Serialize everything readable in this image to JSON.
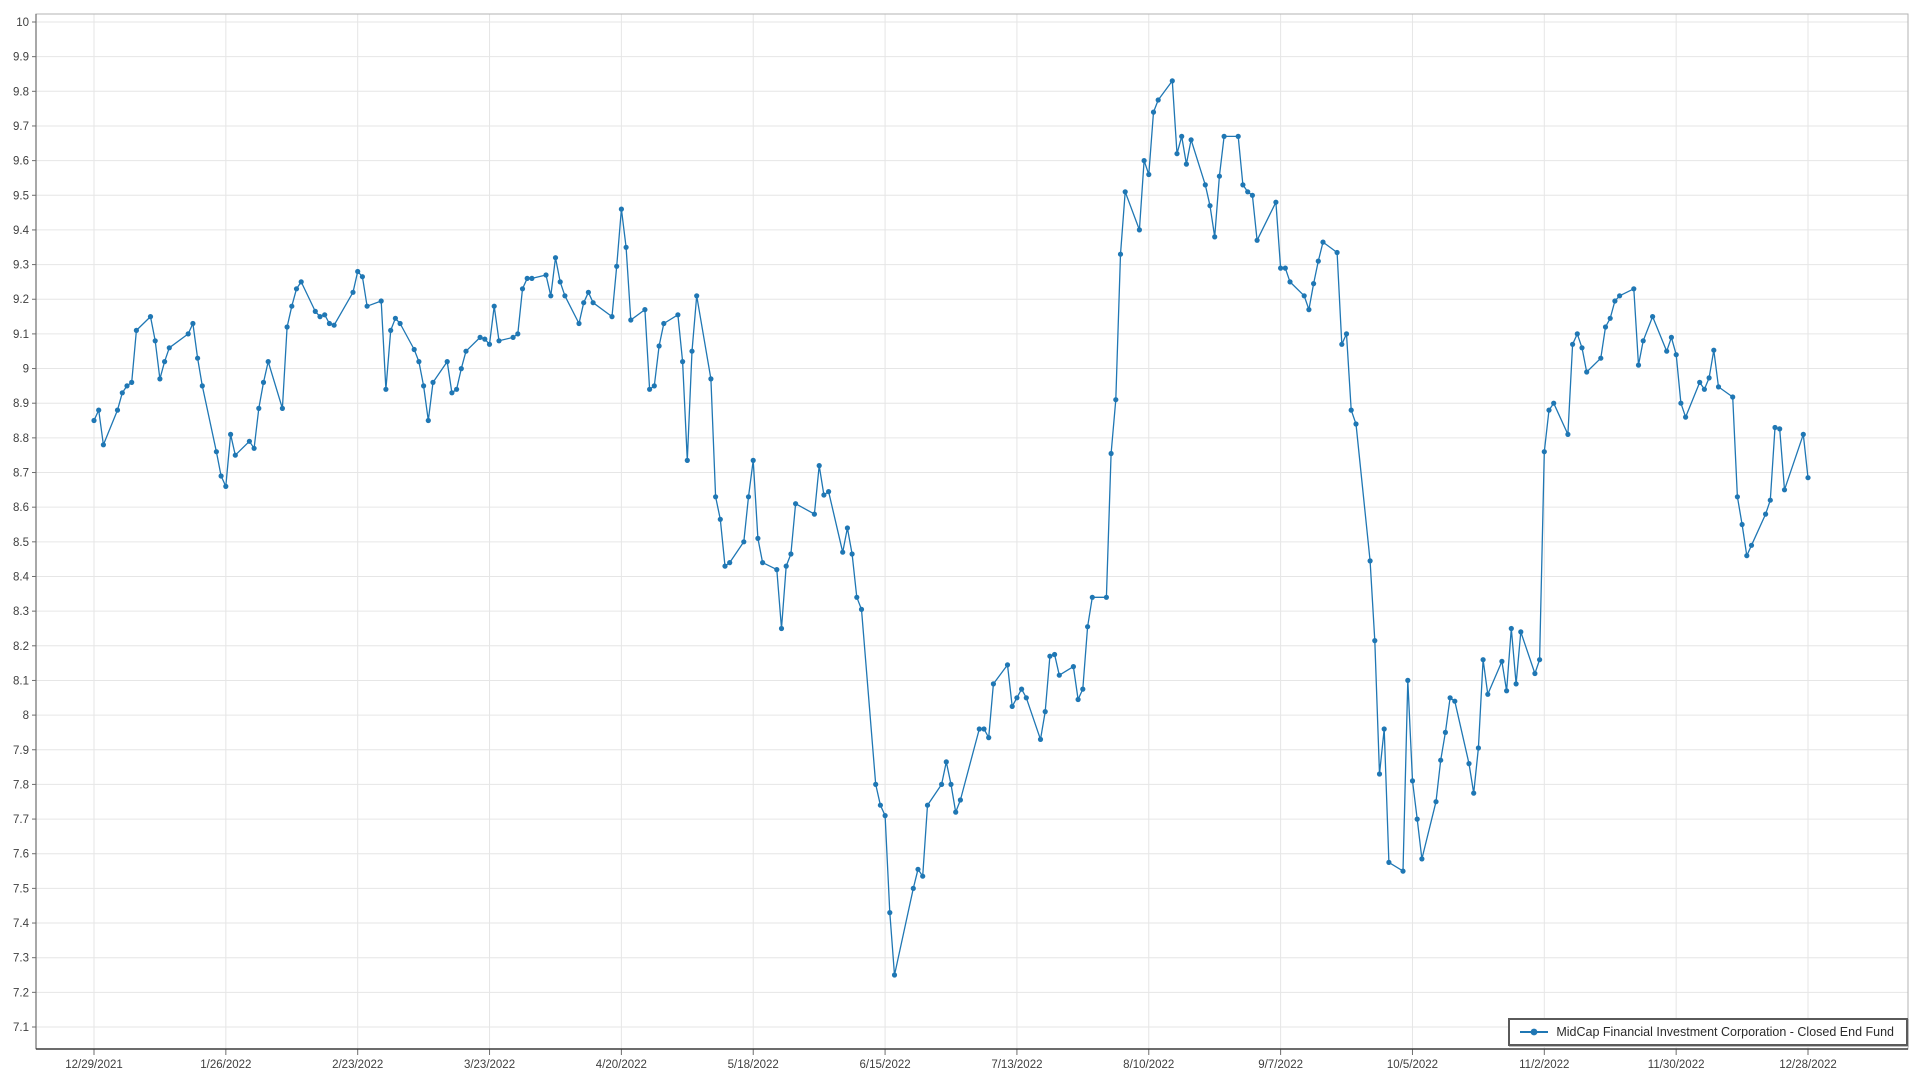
{
  "legend": {
    "label": "MidCap Financial Investment Corporation - Closed End Fund"
  },
  "colors": {
    "series": "#1f77b4",
    "grid": "#e6e6e6",
    "axis": "#6e6e6e",
    "frame": "#b3b3b3",
    "tick_text": "#3f3f3f"
  },
  "chart_data": {
    "type": "line",
    "title": "",
    "xlabel": "",
    "ylabel": "",
    "ylim": [
      7.1,
      10
    ],
    "y_tick_step": 0.1,
    "grid": true,
    "legend_position": "bottom-right",
    "marker": "circle",
    "x_tick_labels": [
      "12/29/2021",
      "1/26/2022",
      "2/23/2022",
      "3/23/2022",
      "4/20/2022",
      "5/18/2022",
      "6/15/2022",
      "7/13/2022",
      "8/10/2022",
      "9/7/2022",
      "10/5/2022",
      "11/2/2022",
      "11/30/2022",
      "12/28/2022"
    ],
    "y_tick_labels": [
      "10",
      "9.9",
      "9.8",
      "9.7",
      "9.6",
      "9.5",
      "9.4",
      "9.3",
      "9.2",
      "9.1",
      "9",
      "8.9",
      "8.8",
      "8.7",
      "8.6",
      "8.5",
      "8.4",
      "8.3",
      "8.2",
      "8.1",
      "8",
      "7.9",
      "7.8",
      "7.7",
      "7.6",
      "7.5",
      "7.4",
      "7.3",
      "7.2",
      "7.1"
    ],
    "series": [
      {
        "name": "MidCap Financial Investment Corporation - Closed End Fund",
        "color": "#1f77b4",
        "dates": [
          "12/29/2021",
          "12/30/2021",
          "12/31/2021",
          "1/3/2022",
          "1/4/2022",
          "1/5/2022",
          "1/6/2022",
          "1/7/2022",
          "1/10/2022",
          "1/11/2022",
          "1/12/2022",
          "1/13/2022",
          "1/14/2022",
          "1/18/2022",
          "1/19/2022",
          "1/20/2022",
          "1/21/2022",
          "1/24/2022",
          "1/25/2022",
          "1/26/2022",
          "1/27/2022",
          "1/28/2022",
          "1/31/2022",
          "2/1/2022",
          "2/2/2022",
          "2/3/2022",
          "2/4/2022",
          "2/7/2022",
          "2/8/2022",
          "2/9/2022",
          "2/10/2022",
          "2/11/2022",
          "2/14/2022",
          "2/15/2022",
          "2/16/2022",
          "2/17/2022",
          "2/18/2022",
          "2/22/2022",
          "2/23/2022",
          "2/24/2022",
          "2/25/2022",
          "2/28/2022",
          "3/1/2022",
          "3/2/2022",
          "3/3/2022",
          "3/4/2022",
          "3/7/2022",
          "3/8/2022",
          "3/9/2022",
          "3/10/2022",
          "3/11/2022",
          "3/14/2022",
          "3/15/2022",
          "3/16/2022",
          "3/17/2022",
          "3/18/2022",
          "3/21/2022",
          "3/22/2022",
          "3/23/2022",
          "3/24/2022",
          "3/25/2022",
          "3/28/2022",
          "3/29/2022",
          "3/30/2022",
          "3/31/2022",
          "4/1/2022",
          "4/4/2022",
          "4/5/2022",
          "4/6/2022",
          "4/7/2022",
          "4/8/2022",
          "4/11/2022",
          "4/12/2022",
          "4/13/2022",
          "4/14/2022",
          "4/18/2022",
          "4/19/2022",
          "4/20/2022",
          "4/21/2022",
          "4/22/2022",
          "4/25/2022",
          "4/26/2022",
          "4/27/2022",
          "4/28/2022",
          "4/29/2022",
          "5/2/2022",
          "5/3/2022",
          "5/4/2022",
          "5/5/2022",
          "5/6/2022",
          "5/9/2022",
          "5/10/2022",
          "5/11/2022",
          "5/12/2022",
          "5/13/2022",
          "5/16/2022",
          "5/17/2022",
          "5/18/2022",
          "5/19/2022",
          "5/20/2022",
          "5/23/2022",
          "5/24/2022",
          "5/25/2022",
          "5/26/2022",
          "5/27/2022",
          "5/31/2022",
          "6/1/2022",
          "6/2/2022",
          "6/3/2022",
          "6/6/2022",
          "6/7/2022",
          "6/8/2022",
          "6/9/2022",
          "6/10/2022",
          "6/13/2022",
          "6/14/2022",
          "6/15/2022",
          "6/16/2022",
          "6/17/2022",
          "6/21/2022",
          "6/22/2022",
          "6/23/2022",
          "6/24/2022",
          "6/27/2022",
          "6/28/2022",
          "6/29/2022",
          "6/30/2022",
          "7/1/2022",
          "7/5/2022",
          "7/6/2022",
          "7/7/2022",
          "7/8/2022",
          "7/11/2022",
          "7/12/2022",
          "7/13/2022",
          "7/14/2022",
          "7/15/2022",
          "7/18/2022",
          "7/19/2022",
          "7/20/2022",
          "7/21/2022",
          "7/22/2022",
          "7/25/2022",
          "7/26/2022",
          "7/27/2022",
          "7/28/2022",
          "7/29/2022",
          "8/1/2022",
          "8/2/2022",
          "8/3/2022",
          "8/4/2022",
          "8/5/2022",
          "8/8/2022",
          "8/9/2022",
          "8/10/2022",
          "8/11/2022",
          "8/12/2022",
          "8/15/2022",
          "8/16/2022",
          "8/17/2022",
          "8/18/2022",
          "8/19/2022",
          "8/22/2022",
          "8/23/2022",
          "8/24/2022",
          "8/25/2022",
          "8/26/2022",
          "8/29/2022",
          "8/30/2022",
          "8/31/2022",
          "9/1/2022",
          "9/2/2022",
          "9/6/2022",
          "9/7/2022",
          "9/8/2022",
          "9/9/2022",
          "9/12/2022",
          "9/13/2022",
          "9/14/2022",
          "9/15/2022",
          "9/16/2022",
          "9/19/2022",
          "9/20/2022",
          "9/21/2022",
          "9/22/2022",
          "9/23/2022",
          "9/26/2022",
          "9/27/2022",
          "9/28/2022",
          "9/29/2022",
          "9/30/2022",
          "10/3/2022",
          "10/4/2022",
          "10/5/2022",
          "10/6/2022",
          "10/7/2022",
          "10/10/2022",
          "10/11/2022",
          "10/12/2022",
          "10/13/2022",
          "10/14/2022",
          "10/17/2022",
          "10/18/2022",
          "10/19/2022",
          "10/20/2022",
          "10/21/2022",
          "10/24/2022",
          "10/25/2022",
          "10/26/2022",
          "10/27/2022",
          "10/28/2022",
          "10/31/2022",
          "11/1/2022",
          "11/2/2022",
          "11/3/2022",
          "11/4/2022",
          "11/7/2022",
          "11/8/2022",
          "11/9/2022",
          "11/10/2022",
          "11/11/2022",
          "11/14/2022",
          "11/15/2022",
          "11/16/2022",
          "11/17/2022",
          "11/18/2022",
          "11/21/2022",
          "11/22/2022",
          "11/23/2022",
          "11/25/2022",
          "11/28/2022",
          "11/29/2022",
          "11/30/2022",
          "12/1/2022",
          "12/2/2022",
          "12/5/2022",
          "12/6/2022",
          "12/7/2022",
          "12/8/2022",
          "12/9/2022",
          "12/12/2022",
          "12/13/2022",
          "12/14/2022",
          "12/15/2022",
          "12/16/2022",
          "12/19/2022",
          "12/20/2022",
          "12/21/2022",
          "12/22/2022",
          "12/23/2022",
          "12/27/2022",
          "12/28/2022"
        ],
        "values": [
          8.85,
          8.88,
          8.78,
          8.88,
          8.93,
          8.95,
          8.96,
          9.11,
          9.15,
          9.08,
          8.97,
          9.02,
          9.06,
          9.1,
          9.13,
          9.03,
          8.95,
          8.76,
          8.69,
          8.66,
          8.81,
          8.75,
          8.79,
          8.77,
          8.885,
          8.96,
          9.02,
          8.885,
          9.12,
          9.18,
          9.23,
          9.25,
          9.165,
          9.15,
          9.155,
          9.13,
          9.125,
          9.22,
          9.28,
          9.265,
          9.18,
          9.195,
          8.94,
          9.11,
          9.145,
          9.13,
          9.055,
          9.02,
          8.95,
          8.85,
          8.96,
          9.02,
          8.93,
          8.94,
          9.0,
          9.05,
          9.09,
          9.085,
          9.07,
          9.18,
          9.08,
          9.09,
          9.1,
          9.23,
          9.26,
          9.26,
          9.27,
          9.21,
          9.32,
          9.25,
          9.21,
          9.13,
          9.19,
          9.22,
          9.19,
          9.15,
          9.295,
          9.46,
          9.35,
          9.14,
          9.17,
          8.94,
          8.95,
          9.065,
          9.13,
          9.155,
          9.02,
          8.735,
          9.05,
          9.21,
          8.97,
          8.63,
          8.565,
          8.43,
          8.44,
          8.5,
          8.63,
          8.735,
          8.51,
          8.44,
          8.42,
          8.25,
          8.43,
          8.465,
          8.61,
          8.58,
          8.72,
          8.635,
          8.645,
          8.47,
          8.54,
          8.465,
          8.34,
          8.305,
          7.8,
          7.74,
          7.71,
          7.43,
          7.25,
          7.5,
          7.555,
          7.535,
          7.74,
          7.8,
          7.865,
          7.8,
          7.72,
          7.755,
          7.96,
          7.96,
          7.935,
          8.09,
          8.145,
          8.025,
          8.05,
          8.075,
          8.05,
          7.93,
          8.01,
          8.17,
          8.175,
          8.115,
          8.14,
          8.045,
          8.075,
          8.255,
          8.34,
          8.34,
          8.755,
          8.91,
          9.33,
          9.51,
          9.4,
          9.6,
          9.56,
          9.74,
          9.775,
          9.83,
          9.62,
          9.67,
          9.59,
          9.66,
          9.53,
          9.47,
          9.38,
          9.555,
          9.67,
          9.67,
          9.53,
          9.51,
          9.5,
          9.37,
          9.48,
          9.29,
          9.29,
          9.25,
          9.21,
          9.17,
          9.245,
          9.31,
          9.365,
          9.335,
          9.07,
          9.1,
          8.88,
          8.84,
          8.445,
          8.215,
          7.83,
          7.96,
          7.575,
          7.55,
          8.1,
          7.81,
          7.7,
          7.585,
          7.75,
          7.87,
          7.95,
          8.05,
          8.04,
          7.86,
          7.775,
          7.905,
          8.16,
          8.06,
          8.155,
          8.07,
          8.25,
          8.09,
          8.24,
          8.12,
          8.16,
          8.76,
          8.88,
          8.9,
          8.81,
          9.07,
          9.1,
          9.06,
          8.99,
          9.03,
          9.12,
          9.145,
          9.195,
          9.21,
          9.23,
          9.01,
          9.08,
          9.15,
          9.05,
          9.09,
          9.04,
          8.9,
          8.86,
          8.96,
          8.94,
          8.973,
          9.053,
          8.947,
          8.918,
          8.63,
          8.55,
          8.46,
          8.49,
          8.58,
          8.62,
          8.83,
          8.826,
          8.65,
          8.81,
          8.685
        ]
      }
    ]
  }
}
